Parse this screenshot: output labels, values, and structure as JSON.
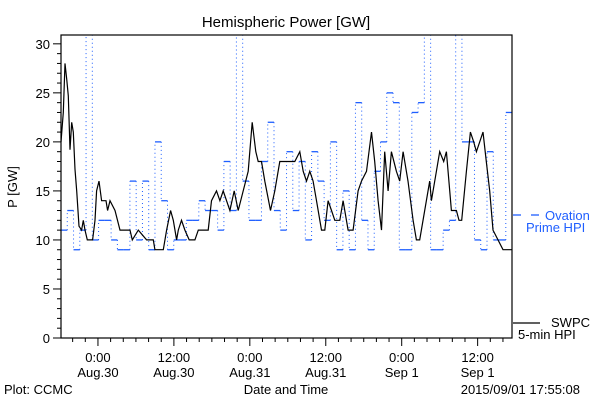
{
  "chart_data": {
    "type": "line",
    "title": "Hemispheric Power [GW]",
    "ylabel": "P [GW]",
    "xlabel": "Date and Time",
    "x_units": "hours since 2015-08-30 00:00 UT",
    "xlim": [
      -5.84,
      65.43
    ],
    "ylim": [
      0,
      30.9
    ],
    "yticks": [
      0,
      5,
      10,
      15,
      20,
      25,
      30
    ],
    "xticks": [
      {
        "x": 0,
        "label1": "0:00",
        "label2": "Aug.30"
      },
      {
        "x": 12,
        "label1": "12:00",
        "label2": "Aug.30"
      },
      {
        "x": 24,
        "label1": "0:00",
        "label2": "Aug.31"
      },
      {
        "x": 36,
        "label1": "12:00",
        "label2": "Aug.31"
      },
      {
        "x": 48,
        "label1": "0:00",
        "label2": "Sep 1"
      },
      {
        "x": 60,
        "label1": "12:00",
        "label2": "Sep 1"
      }
    ],
    "legend_placement": "right-outside",
    "series": [
      {
        "name": "SWPC 5-min HPI",
        "legend": [
          "SWPC",
          "5-min HPI"
        ],
        "color": "#000000",
        "style": "solid",
        "points": [
          [
            -5.84,
            20
          ],
          [
            -5.47,
            23
          ],
          [
            -5.21,
            28
          ],
          [
            -4.94,
            26.4
          ],
          [
            -4.68,
            24.7
          ],
          [
            -4.42,
            19.2
          ],
          [
            -4.15,
            22
          ],
          [
            -3.89,
            21
          ],
          [
            -3.63,
            17.2
          ],
          [
            -3.36,
            15
          ],
          [
            -3.0,
            11.4
          ],
          [
            -2.58,
            11
          ],
          [
            -2.31,
            12
          ],
          [
            -2.05,
            11
          ],
          [
            -1.68,
            10
          ],
          [
            -0.84,
            10
          ],
          [
            -0.47,
            12
          ],
          [
            -0.21,
            15
          ],
          [
            0.16,
            16
          ],
          [
            0.58,
            14
          ],
          [
            1.27,
            14
          ],
          [
            1.53,
            13
          ],
          [
            1.9,
            14
          ],
          [
            2.69,
            13
          ],
          [
            3.48,
            11
          ],
          [
            5.06,
            11
          ],
          [
            5.42,
            10
          ],
          [
            6.37,
            11
          ],
          [
            7.69,
            10
          ],
          [
            8.74,
            10
          ],
          [
            9.0,
            9
          ],
          [
            10.32,
            9
          ],
          [
            10.85,
            11
          ],
          [
            11.48,
            13
          ],
          [
            11.9,
            12
          ],
          [
            12.42,
            10
          ],
          [
            12.69,
            11
          ],
          [
            13.21,
            12
          ],
          [
            13.74,
            11
          ],
          [
            14.42,
            10
          ],
          [
            15.32,
            10
          ],
          [
            15.85,
            11
          ],
          [
            17.42,
            11
          ],
          [
            17.95,
            14
          ],
          [
            18.74,
            15
          ],
          [
            19.27,
            14
          ],
          [
            19.79,
            15
          ],
          [
            20.85,
            13
          ],
          [
            21.53,
            15
          ],
          [
            22.16,
            13
          ],
          [
            22.95,
            15
          ],
          [
            23.74,
            17
          ],
          [
            24.37,
            22
          ],
          [
            24.95,
            19
          ],
          [
            25.32,
            18
          ],
          [
            25.85,
            18
          ],
          [
            26.37,
            16
          ],
          [
            27.27,
            13
          ],
          [
            27.95,
            15
          ],
          [
            28.74,
            18
          ],
          [
            31.11,
            18
          ],
          [
            31.9,
            19
          ],
          [
            32.43,
            17
          ],
          [
            32.95,
            16
          ],
          [
            33.48,
            17
          ],
          [
            34.0,
            16
          ],
          [
            34.53,
            14
          ],
          [
            35.32,
            11
          ],
          [
            35.85,
            11
          ],
          [
            36.37,
            14
          ],
          [
            36.9,
            13
          ],
          [
            37.43,
            12
          ],
          [
            38.22,
            12
          ],
          [
            38.74,
            14
          ],
          [
            39.53,
            11
          ],
          [
            40.32,
            11
          ],
          [
            41.11,
            15
          ],
          [
            41.64,
            16
          ],
          [
            42.43,
            17
          ],
          [
            43.22,
            21
          ],
          [
            43.74,
            18
          ],
          [
            44.27,
            14
          ],
          [
            44.8,
            11
          ],
          [
            45.32,
            19
          ],
          [
            45.85,
            15
          ],
          [
            46.37,
            19
          ],
          [
            47.16,
            17
          ],
          [
            47.69,
            16
          ],
          [
            48.22,
            19
          ],
          [
            49.0,
            16
          ],
          [
            49.8,
            12
          ],
          [
            50.32,
            10
          ],
          [
            50.85,
            10
          ],
          [
            51.64,
            13
          ],
          [
            52.43,
            16
          ],
          [
            52.69,
            14
          ],
          [
            53.48,
            17
          ],
          [
            54.0,
            19
          ],
          [
            54.64,
            18
          ],
          [
            55.06,
            19
          ],
          [
            55.85,
            13
          ],
          [
            56.64,
            13
          ],
          [
            57.06,
            12
          ],
          [
            57.48,
            12
          ],
          [
            58.22,
            17
          ],
          [
            58.85,
            21
          ],
          [
            59.37,
            20
          ],
          [
            59.8,
            19
          ],
          [
            60.32,
            20
          ],
          [
            60.85,
            21
          ],
          [
            61.37,
            18
          ],
          [
            61.9,
            15
          ],
          [
            62.43,
            11
          ],
          [
            63.22,
            10
          ],
          [
            64.0,
            9
          ],
          [
            65.43,
            9
          ]
        ]
      },
      {
        "name": "Ovation Prime HPI",
        "legend": [
          "Ovation",
          "Prime HPI"
        ],
        "color": "#1f5fff",
        "style": "step-dashed",
        "step_start": -5.84,
        "step_hours": 0.99,
        "values": [
          11,
          13,
          9,
          11,
          35,
          10,
          12,
          12,
          10,
          9,
          9,
          16,
          10,
          16,
          9,
          20,
          14,
          9,
          10,
          10,
          12,
          12,
          14,
          13,
          13,
          11,
          18,
          13,
          35,
          16,
          12,
          12,
          18,
          22,
          13,
          11,
          19,
          13,
          18,
          10,
          19,
          16,
          12,
          20,
          9,
          15,
          9,
          24,
          12,
          9,
          17,
          20,
          25,
          24,
          9,
          9,
          23,
          24,
          35,
          9,
          9,
          11,
          12,
          35,
          20,
          20,
          10,
          9,
          19,
          10,
          10,
          23
        ]
      }
    ]
  },
  "footer": {
    "left": "Plot: CCMC",
    "right": "2015/09/01 17:55:08"
  }
}
